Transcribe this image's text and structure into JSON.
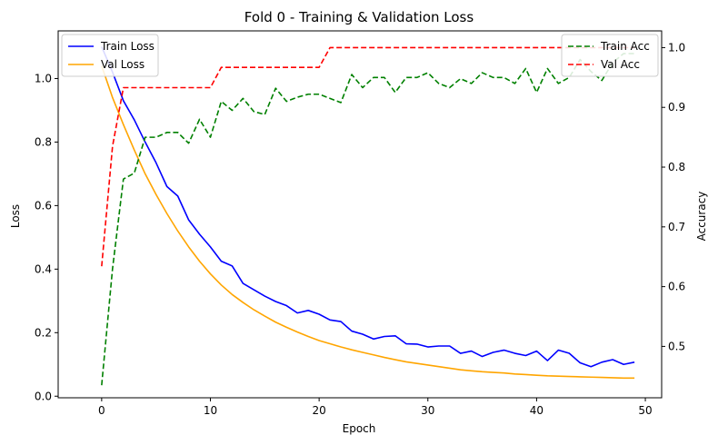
{
  "chart_data": {
    "type": "line",
    "title": "Fold 0 - Training & Validation Loss",
    "xlabel": "Epoch",
    "ylabel": "Loss",
    "y2label": "Accuracy",
    "xlim": [
      -4,
      51.5
    ],
    "ylim": [
      -0.005,
      1.15
    ],
    "y2lim": [
      0.414,
      1.028
    ],
    "xticks": [
      0,
      10,
      20,
      30,
      40,
      50
    ],
    "yticks": [
      0.0,
      0.2,
      0.4,
      0.6,
      0.8,
      1.0
    ],
    "ytick_labels": [
      "0.0",
      "0.2",
      "0.4",
      "0.6",
      "0.8",
      "1.0"
    ],
    "y2ticks": [
      0.5,
      0.6,
      0.7,
      0.8,
      0.9,
      1.0
    ],
    "y2tick_labels": [
      "0.5",
      "0.6",
      "0.7",
      "0.8",
      "0.9",
      "1.0"
    ],
    "grid": false,
    "legend_left": "top-left",
    "legend_right": "top-right",
    "x": [
      0,
      1,
      2,
      3,
      4,
      5,
      6,
      7,
      8,
      9,
      10,
      11,
      12,
      13,
      14,
      15,
      16,
      17,
      18,
      19,
      20,
      21,
      22,
      23,
      24,
      25,
      26,
      27,
      28,
      29,
      30,
      31,
      32,
      33,
      34,
      35,
      36,
      37,
      38,
      39,
      40,
      41,
      42,
      43,
      44,
      45,
      46,
      47,
      48,
      49
    ],
    "series": [
      {
        "name": "Train Loss",
        "axis": "left",
        "color": "#0000ff",
        "dash": "solid",
        "values": [
          1.1,
          1.02,
          0.93,
          0.87,
          0.8,
          0.735,
          0.66,
          0.63,
          0.555,
          0.51,
          0.47,
          0.425,
          0.41,
          0.355,
          0.335,
          0.315,
          0.298,
          0.285,
          0.262,
          0.27,
          0.258,
          0.24,
          0.235,
          0.205,
          0.195,
          0.18,
          0.188,
          0.19,
          0.165,
          0.164,
          0.155,
          0.158,
          0.158,
          0.135,
          0.142,
          0.125,
          0.138,
          0.145,
          0.135,
          0.128,
          0.142,
          0.112,
          0.145,
          0.135,
          0.105,
          0.093,
          0.107,
          0.115,
          0.1,
          0.107
        ]
      },
      {
        "name": "Val Loss",
        "axis": "left",
        "color": "#ffa500",
        "dash": "solid",
        "values": [
          1.04,
          0.94,
          0.855,
          0.775,
          0.7,
          0.635,
          0.575,
          0.52,
          0.47,
          0.425,
          0.385,
          0.35,
          0.32,
          0.295,
          0.272,
          0.252,
          0.233,
          0.217,
          0.202,
          0.188,
          0.175,
          0.165,
          0.155,
          0.146,
          0.138,
          0.13,
          0.122,
          0.115,
          0.108,
          0.103,
          0.098,
          0.093,
          0.088,
          0.083,
          0.08,
          0.077,
          0.075,
          0.073,
          0.07,
          0.068,
          0.066,
          0.064,
          0.063,
          0.062,
          0.061,
          0.06,
          0.059,
          0.058,
          0.057,
          0.057
        ]
      },
      {
        "name": "Train Acc",
        "axis": "right",
        "color": "#008000",
        "dash": "dashed",
        "values": [
          0.435,
          0.63,
          0.78,
          0.79,
          0.85,
          0.85,
          0.858,
          0.858,
          0.84,
          0.88,
          0.85,
          0.91,
          0.895,
          0.915,
          0.893,
          0.888,
          0.932,
          0.91,
          0.917,
          0.922,
          0.922,
          0.915,
          0.908,
          0.955,
          0.933,
          0.95,
          0.95,
          0.925,
          0.95,
          0.95,
          0.958,
          0.94,
          0.933,
          0.948,
          0.94,
          0.958,
          0.95,
          0.95,
          0.94,
          0.965,
          0.925,
          0.965,
          0.94,
          0.95,
          0.98,
          0.96,
          0.945,
          0.975,
          0.99,
          0.99
        ]
      },
      {
        "name": "Val Acc",
        "axis": "right",
        "color": "#ff0000",
        "dash": "dashed",
        "values": [
          0.634,
          0.835,
          0.933,
          0.933,
          0.933,
          0.933,
          0.933,
          0.933,
          0.933,
          0.933,
          0.933,
          0.967,
          0.967,
          0.967,
          0.967,
          0.967,
          0.967,
          0.967,
          0.967,
          0.967,
          0.967,
          1.0,
          1.0,
          1.0,
          1.0,
          1.0,
          1.0,
          1.0,
          1.0,
          1.0,
          1.0,
          1.0,
          1.0,
          1.0,
          1.0,
          1.0,
          1.0,
          1.0,
          1.0,
          1.0,
          1.0,
          1.0,
          1.0,
          1.0,
          1.0,
          1.0,
          1.0,
          1.0,
          1.0,
          1.0
        ]
      }
    ]
  }
}
